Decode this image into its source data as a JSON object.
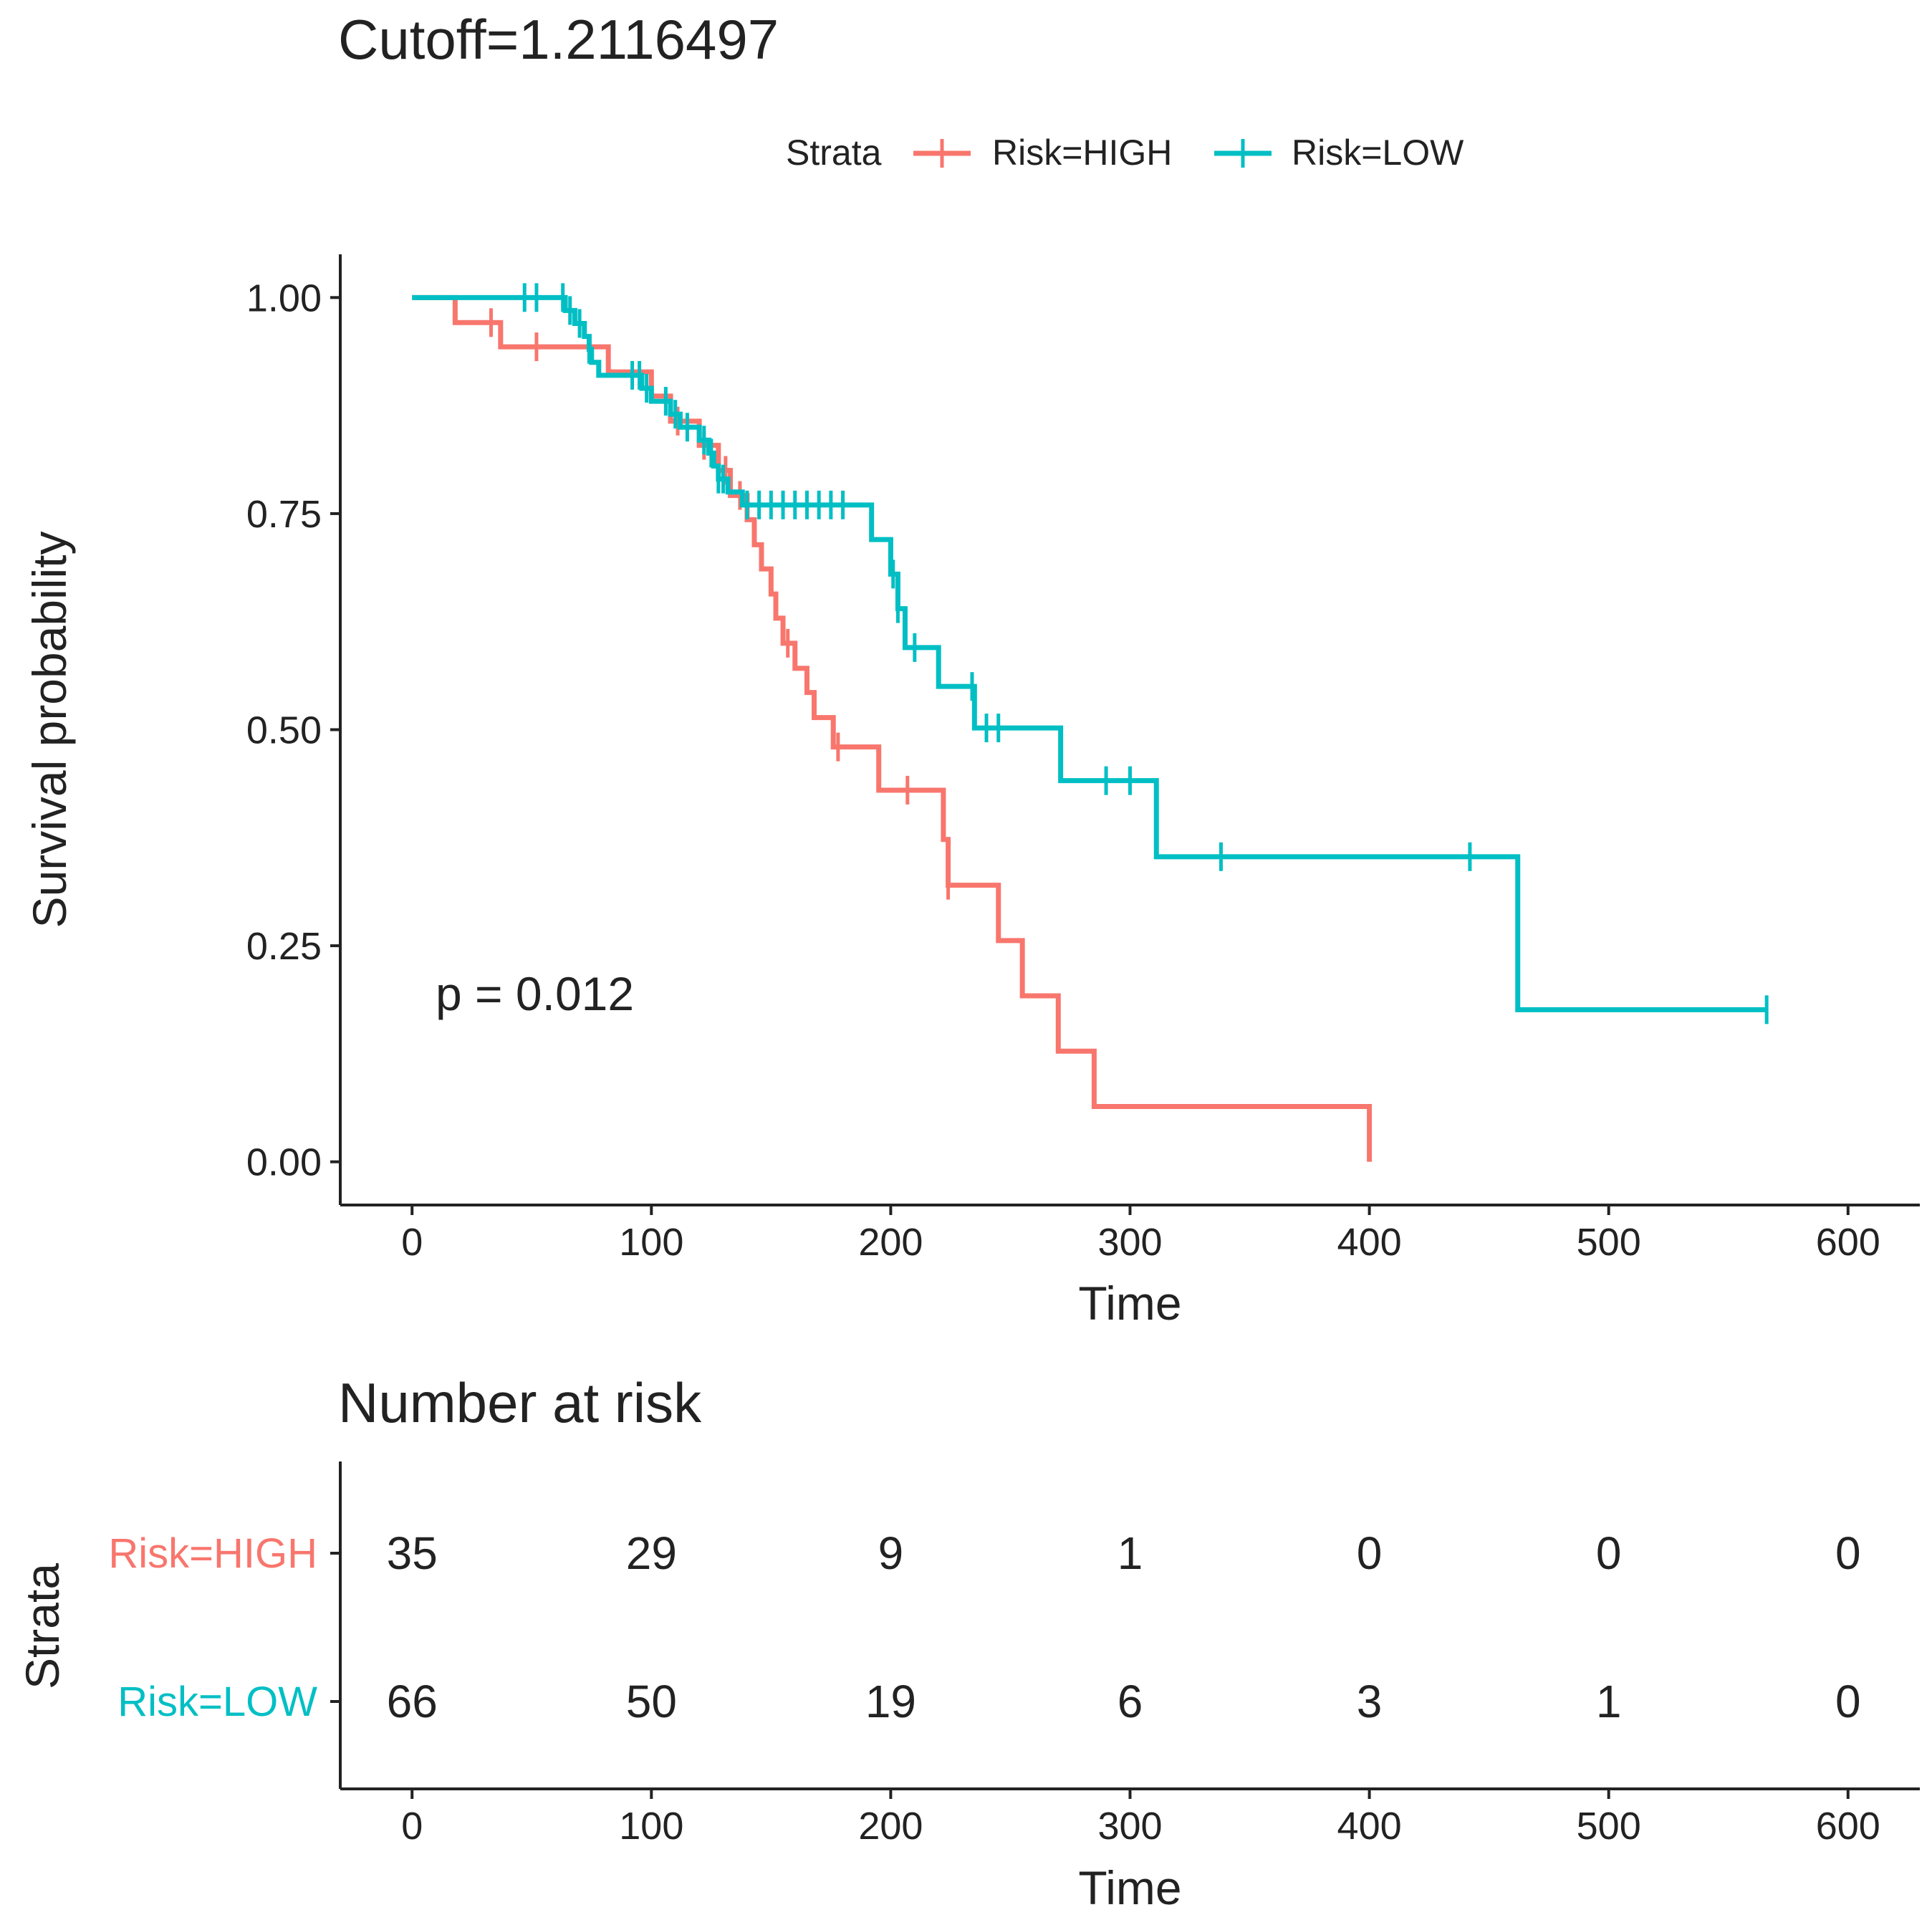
{
  "chart_data": [
    {
      "type": "line",
      "title": "Cutoff=1.2116497",
      "xlabel": "Time",
      "ylabel": "Survival probability",
      "xlim": [
        -30,
        630
      ],
      "ylim": [
        -0.05,
        1.05
      ],
      "x_ticks": [
        0,
        100,
        200,
        300,
        400,
        500,
        600
      ],
      "x_tick_labels": [
        "0",
        "100",
        "200",
        "300",
        "400",
        "500",
        "600"
      ],
      "y_ticks": [
        0,
        0.25,
        0.5,
        0.75,
        1.0
      ],
      "y_tick_labels": [
        "0.00",
        "0.25",
        "0.50",
        "0.75",
        "1.00"
      ],
      "grid": false,
      "legend": {
        "title": "Strata",
        "position": "top",
        "entries": [
          "Risk=HIGH",
          "Risk=LOW"
        ]
      },
      "annotation": "p = 0.012",
      "series": [
        {
          "name": "Risk=HIGH",
          "color": "#F8766D",
          "steps": [
            [
              0,
              1.0
            ],
            [
              18,
              0.971
            ],
            [
              37,
              0.943
            ],
            [
              82,
              0.914
            ],
            [
              100,
              0.886
            ],
            [
              108,
              0.857
            ],
            [
              120,
              0.829
            ],
            [
              128,
              0.8
            ],
            [
              133,
              0.771
            ],
            [
              140,
              0.743
            ],
            [
              143,
              0.714
            ],
            [
              146,
              0.686
            ],
            [
              150,
              0.657
            ],
            [
              152,
              0.629
            ],
            [
              155,
              0.6
            ],
            [
              160,
              0.571
            ],
            [
              165,
              0.543
            ],
            [
              168,
              0.514
            ],
            [
              176,
              0.48
            ],
            [
              195,
              0.43
            ],
            [
              222,
              0.373
            ],
            [
              224,
              0.32
            ],
            [
              245,
              0.256
            ],
            [
              255,
              0.192
            ],
            [
              270,
              0.128
            ],
            [
              285,
              0.064
            ],
            [
              400,
              0.0
            ]
          ],
          "end_time": 400,
          "censor_times": [
            33,
            52,
            111,
            122,
            131,
            137,
            157,
            178,
            207,
            224
          ]
        },
        {
          "name": "Risk=LOW",
          "color": "#00BFC4",
          "steps": [
            [
              0,
              1.0
            ],
            [
              64,
              0.985
            ],
            [
              68,
              0.97
            ],
            [
              72,
              0.955
            ],
            [
              74,
              0.94
            ],
            [
              75,
              0.925
            ],
            [
              78,
              0.91
            ],
            [
              96,
              0.895
            ],
            [
              100,
              0.88
            ],
            [
              108,
              0.865
            ],
            [
              112,
              0.85
            ],
            [
              120,
              0.835
            ],
            [
              124,
              0.82
            ],
            [
              126,
              0.805
            ],
            [
              128,
              0.79
            ],
            [
              132,
              0.775
            ],
            [
              138,
              0.76
            ],
            [
              192,
              0.72
            ],
            [
              200,
              0.68
            ],
            [
              203,
              0.64
            ],
            [
              206,
              0.595
            ],
            [
              220,
              0.55
            ],
            [
              235,
              0.502
            ],
            [
              271,
              0.441
            ],
            [
              311,
              0.353
            ],
            [
              462,
              0.176
            ]
          ],
          "end_time": 566,
          "censor_times": [
            47,
            52,
            63,
            66,
            70,
            74,
            92,
            95,
            98,
            106,
            110,
            115,
            122,
            125,
            128,
            130,
            140,
            145,
            150,
            155,
            160,
            165,
            170,
            175,
            180,
            201,
            203,
            210,
            234,
            240,
            245,
            290,
            300,
            338,
            442,
            566
          ]
        }
      ]
    },
    {
      "type": "table",
      "title": "Number at risk",
      "xlabel": "Time",
      "ylabel": "Strata",
      "x_ticks": [
        0,
        100,
        200,
        300,
        400,
        500,
        600
      ],
      "x_tick_labels": [
        "0",
        "100",
        "200",
        "300",
        "400",
        "500",
        "600"
      ],
      "rows": [
        {
          "name": "Risk=HIGH",
          "color": "#F8766D",
          "values": [
            "35",
            "29",
            "9",
            "1",
            "0",
            "0",
            "0"
          ]
        },
        {
          "name": "Risk=LOW",
          "color": "#00BFC4",
          "values": [
            "66",
            "50",
            "19",
            "6",
            "3",
            "1",
            "0"
          ]
        }
      ]
    }
  ]
}
